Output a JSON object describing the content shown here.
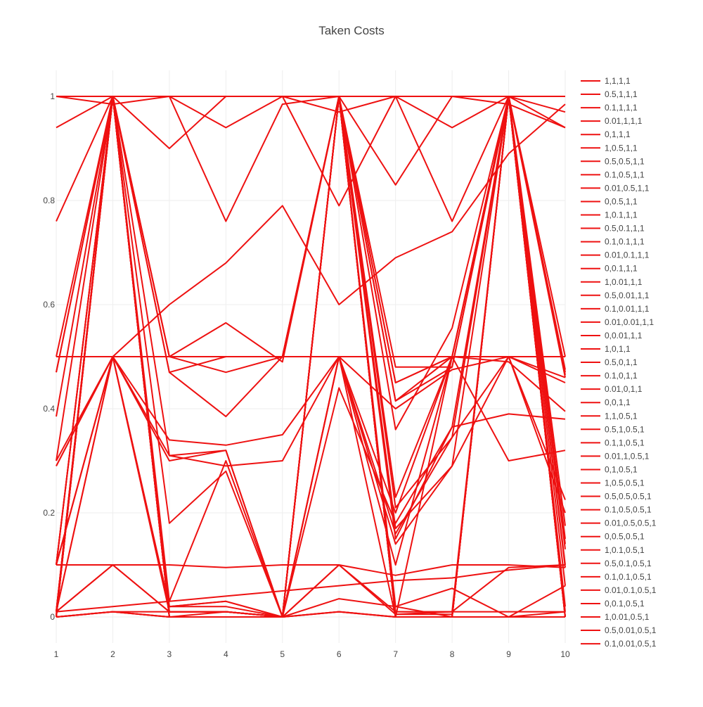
{
  "chart_data": {
    "type": "line",
    "title": "Taken Costs",
    "xlabel": "",
    "ylabel": "",
    "x": [
      1,
      2,
      3,
      4,
      5,
      6,
      7,
      8,
      9,
      10
    ],
    "xlim": [
      1,
      10
    ],
    "ylim": [
      -0.05,
      1.05
    ],
    "y_ticks": [
      0,
      0.2,
      0.4,
      0.6,
      0.8,
      1
    ],
    "y_tick_labels": [
      "0",
      "0.2",
      "0.4",
      "0.6",
      "0.8",
      "1"
    ],
    "x_tick_labels": [
      "1",
      "2",
      "3",
      "4",
      "5",
      "6",
      "7",
      "8",
      "9",
      "10"
    ],
    "grid": true,
    "legend_position": "right",
    "line_color": "#ee1111",
    "series": [
      {
        "name": "1,1,1,1",
        "values": [
          1,
          1,
          1,
          1,
          1,
          1,
          1,
          1,
          1,
          1
        ]
      },
      {
        "name": "0.5,1,1,1",
        "values": [
          0.94,
          1,
          0.9,
          1,
          1,
          1,
          1,
          1,
          1,
          0.94
        ]
      },
      {
        "name": "0.1,1,1,1",
        "values": [
          0.76,
          1,
          1,
          0.94,
          1,
          0.97,
          1,
          0.76,
          1,
          0.97
        ]
      },
      {
        "name": "0.01,1,1,1",
        "values": [
          1,
          0.985,
          1,
          0.76,
          0.985,
          1,
          0.83,
          1,
          0.985,
          0.94
        ]
      },
      {
        "name": "0,1,1,1",
        "values": [
          1,
          1,
          1,
          1,
          1,
          0.79,
          1,
          0.94,
          1,
          1
        ]
      },
      {
        "name": "1,0.5,1,1",
        "values": [
          0.5,
          1,
          0.5,
          0.5,
          0.5,
          1,
          0.45,
          0.5,
          1,
          0.47
        ]
      },
      {
        "name": "0.5,0.5,1,1",
        "values": [
          0.47,
          1,
          0.47,
          0.5,
          0.5,
          1,
          0.415,
          0.48,
          1,
          0.46
        ]
      },
      {
        "name": "0.1,0.5,1,1",
        "values": [
          0.385,
          1,
          0.5,
          0.47,
          0.5,
          1,
          0.48,
          0.48,
          1,
          0.5
        ]
      },
      {
        "name": "0.01,0.5,1,1",
        "values": [
          0.3,
          1,
          0.47,
          0.385,
          0.5,
          1,
          0.415,
          0.5,
          1,
          0.465
        ]
      },
      {
        "name": "0,0.5,1,1",
        "values": [
          0.47,
          1,
          0.5,
          0.565,
          0.49,
          1,
          0.45,
          0.5,
          1,
          0.475
        ]
      },
      {
        "name": "1,0.1,1,1",
        "values": [
          0.1,
          1,
          0.31,
          0.32,
          0,
          1,
          0.23,
          0.5,
          1,
          0.1
        ]
      },
      {
        "name": "0.5,0.1,1,1",
        "values": [
          0.1,
          1,
          0.18,
          0.28,
          0,
          1,
          0.21,
          0.345,
          1,
          0.15
        ]
      },
      {
        "name": "0.1,0.1,1,1",
        "values": [
          0.1,
          1,
          0.02,
          0.03,
          0,
          1,
          0.17,
          0.29,
          1,
          0.14
        ]
      },
      {
        "name": "0.01,0.1,1,1",
        "values": [
          0.01,
          1,
          0.03,
          0.3,
          0,
          1,
          0.15,
          0.365,
          1,
          0.13
        ]
      },
      {
        "name": "0,0.1,1,1",
        "values": [
          0.1,
          1,
          0,
          0,
          0,
          1,
          0.36,
          0.555,
          1,
          0.175
        ]
      },
      {
        "name": "1,0.01,1,1",
        "values": [
          0.01,
          1,
          0.01,
          0.01,
          0,
          1,
          0,
          0,
          1,
          0.095
        ]
      },
      {
        "name": "0.5,0.01,1,1",
        "values": [
          0.01,
          1,
          0.01,
          0.01,
          0,
          1,
          0.02,
          0,
          1,
          0.06
        ]
      },
      {
        "name": "0.1,0.01,1,1",
        "values": [
          0,
          1,
          0,
          0,
          0,
          1,
          0.01,
          0.01,
          1,
          0.02
        ]
      },
      {
        "name": "0.01,0.01,1,1",
        "values": [
          0.005,
          1,
          0,
          0,
          0,
          1,
          0.005,
          0.005,
          1,
          0.01
        ]
      },
      {
        "name": "0,0.01,1,1",
        "values": [
          0.01,
          1,
          0,
          0.01,
          0,
          1,
          0,
          0,
          1,
          0
        ]
      },
      {
        "name": "1,0,1,1",
        "values": [
          0,
          1,
          0,
          0,
          0,
          1,
          0,
          0,
          1,
          0
        ]
      },
      {
        "name": "0.5,0,1,1",
        "values": [
          0,
          1,
          0,
          0,
          0,
          1,
          0,
          0,
          1,
          0
        ]
      },
      {
        "name": "0.1,0,1,1",
        "values": [
          0,
          1,
          0,
          0,
          0,
          1,
          0,
          0,
          1,
          0
        ]
      },
      {
        "name": "0.01,0,1,1",
        "values": [
          0,
          1,
          0,
          0,
          0,
          1,
          0,
          0,
          1,
          0
        ]
      },
      {
        "name": "0,0,1,1",
        "values": [
          0,
          1,
          0,
          0,
          0,
          1,
          0,
          0,
          1,
          0
        ]
      },
      {
        "name": "1,1,0.5,1",
        "values": [
          1,
          1,
          1,
          1,
          1,
          1,
          1,
          1,
          1,
          1
        ]
      },
      {
        "name": "0.5,1,0.5,1",
        "values": [
          0.5,
          0.5,
          0.5,
          0.5,
          0.5,
          0.5,
          0.5,
          0.5,
          0.5,
          0.5
        ]
      },
      {
        "name": "0.1,1,0.5,1",
        "values": [
          0.3,
          0.5,
          0.3,
          0.32,
          0,
          0.5,
          0,
          0.5,
          0.5,
          0.45
        ]
      },
      {
        "name": "0.01,1,0.5,1",
        "values": [
          0.29,
          0.5,
          0.31,
          0.29,
          0.3,
          0.5,
          0.2,
          0.5,
          0.49,
          0.395
        ]
      },
      {
        "name": "0,1,0.5,1",
        "values": [
          0.29,
          0.5,
          0.34,
          0.33,
          0.35,
          0.5,
          0.4,
          0.475,
          0.5,
          0.46
        ]
      },
      {
        "name": "1,0.5,0.5,1",
        "values": [
          0.1,
          0.5,
          0.02,
          0.03,
          0,
          0.5,
          0.16,
          0.345,
          0.5,
          0.225
        ]
      },
      {
        "name": "0.5,0.5,0.5,1",
        "values": [
          0.1,
          0.5,
          0.01,
          0.01,
          0,
          0.5,
          0.14,
          0.29,
          0.5,
          0.2
        ]
      },
      {
        "name": "0.1,0.5,0.5,1",
        "values": [
          0.01,
          0.5,
          0.02,
          0.02,
          0,
          0.44,
          0.18,
          0.365,
          0.39,
          0.38
        ]
      },
      {
        "name": "0.01,0.5,0.5,1",
        "values": [
          0.01,
          0.5,
          0.01,
          0.01,
          0,
          0.5,
          0.1,
          0.5,
          0.3,
          0.32
        ]
      },
      {
        "name": "0,0.5,0.5,1",
        "values": [
          0.1,
          0.5,
          0.6,
          0.68,
          0.79,
          0.6,
          0.69,
          0.74,
          0.89,
          0.985
        ]
      },
      {
        "name": "1,0.1,0.5,1",
        "values": [
          0.1,
          0.1,
          0.1,
          0.095,
          0.1,
          0.1,
          0.08,
          0.1,
          0.1,
          0.095
        ]
      },
      {
        "name": "0.5,0.1,0.5,1",
        "values": [
          0.01,
          0.1,
          0.01,
          0.01,
          0,
          0.1,
          0.005,
          0.01,
          0.095,
          0.1
        ]
      },
      {
        "name": "0.1,0.1,0.5,1",
        "values": [
          0.01,
          0.1,
          0.01,
          0.01,
          0,
          0.1,
          0.01,
          0.01,
          0.01,
          0.01
        ]
      },
      {
        "name": "0.01,0.1,0.5,1",
        "values": [
          0,
          0.01,
          0.01,
          0.01,
          0,
          0.035,
          0.02,
          0.055,
          0,
          0.06
        ]
      },
      {
        "name": "0,0.1,0.5,1",
        "values": [
          0.01,
          0.02,
          0.03,
          0.04,
          0.05,
          0.06,
          0.07,
          0.075,
          0.09,
          0.1
        ]
      },
      {
        "name": "1,0.01,0.5,1",
        "values": [
          0,
          0.01,
          0,
          0,
          0,
          0.01,
          0,
          0,
          0,
          0
        ]
      },
      {
        "name": "0.5,0.01,0.5,1",
        "values": [
          0,
          0.01,
          0,
          0,
          0,
          0.01,
          0,
          0,
          0,
          0
        ]
      },
      {
        "name": "0.1,0.01,0.5,1",
        "values": [
          0,
          0.01,
          0,
          0,
          0,
          0.01,
          0,
          0,
          0,
          0.01
        ]
      }
    ]
  }
}
